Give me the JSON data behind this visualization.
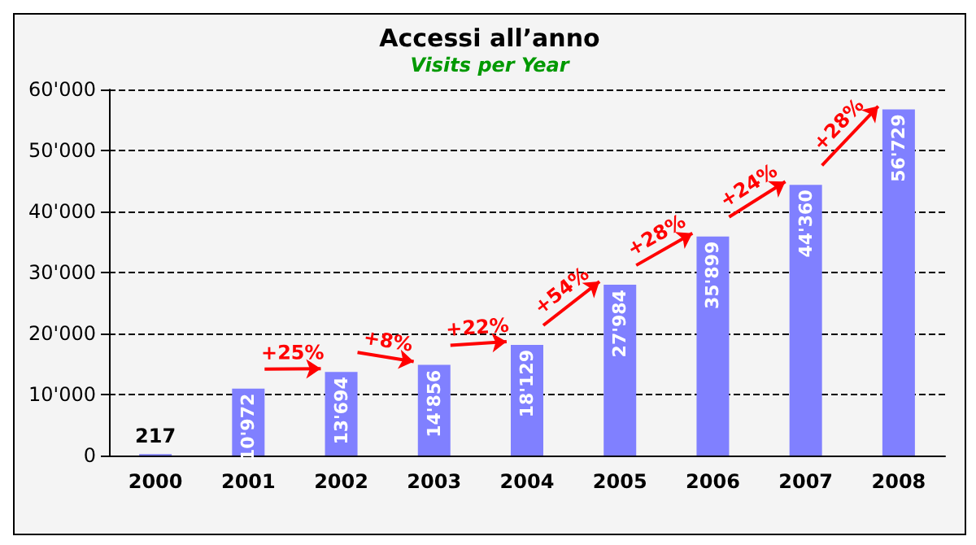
{
  "chart_data": {
    "type": "bar",
    "title": "Accessi all’anno",
    "subtitle": "Visits per Year",
    "categories": [
      "2000",
      "2001",
      "2002",
      "2003",
      "2004",
      "2005",
      "2006",
      "2007",
      "2008"
    ],
    "values": [
      217,
      10972,
      13694,
      14856,
      18129,
      27984,
      35899,
      44360,
      56729
    ],
    "value_labels": [
      "217",
      "10'972",
      "13'694",
      "14'856",
      "18'129",
      "27'984",
      "35'899",
      "44'360",
      "56'729"
    ],
    "color": "#8080ff",
    "ylim": [
      0,
      60000
    ],
    "yticks": [
      {
        "value": 0,
        "label": "0"
      },
      {
        "value": 10000,
        "label": "10'000"
      },
      {
        "value": 20000,
        "label": "20'000"
      },
      {
        "value": 30000,
        "label": "30'000"
      },
      {
        "value": 40000,
        "label": "40'000"
      },
      {
        "value": 50000,
        "label": "50'000"
      },
      {
        "value": 60000,
        "label": "60'000"
      }
    ],
    "grid": "y",
    "annotations": [
      "+25%",
      "+8%",
      "+22%",
      "+54%",
      "+28%",
      "+24%",
      "+28%"
    ]
  }
}
